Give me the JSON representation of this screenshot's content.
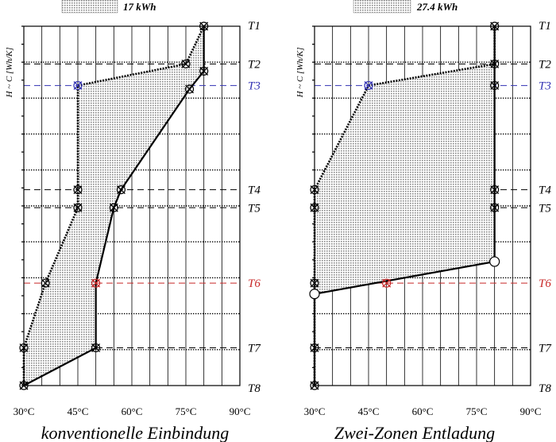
{
  "y_axis_label": "H ~ C [Wh/K]",
  "x_tick_labels": [
    "30°C",
    "45°C",
    "60°C",
    "75°C",
    "90°C"
  ],
  "level_labels": [
    "T1",
    "T2",
    "T3",
    "T4",
    "T5",
    "T6",
    "T7",
    "T8"
  ],
  "colors": {
    "hatch": "#8a8a8a",
    "t3": "#3232b4",
    "t6": "#c82828",
    "line": "#000000"
  },
  "panels": [
    {
      "caption": "konventionelle Einbindung",
      "energy_label": "17 kWh"
    },
    {
      "caption": "Zwei-Zonen Entladung",
      "energy_label": "27.4 kWh"
    }
  ],
  "chart_data": [
    {
      "type": "area",
      "title": "konventionelle Einbindung",
      "annotation": "17 kWh",
      "xlabel": "",
      "ylabel": "H ~ C [Wh/K]",
      "xlim": [
        30,
        90
      ],
      "x_ticks": [
        30,
        45,
        60,
        75,
        90
      ],
      "levels": [
        "T1",
        "T2",
        "T3",
        "T4",
        "T5",
        "T6",
        "T7",
        "T8"
      ],
      "level_positions": [
        1.0,
        0.895,
        0.835,
        0.545,
        0.495,
        0.285,
        0.105,
        0.0
      ],
      "series": [
        {
          "style": "solid",
          "points": [
            [
              80,
              1.0
            ],
            [
              80,
              0.875
            ],
            [
              76,
              0.825
            ],
            [
              57,
              0.545
            ],
            [
              55,
              0.495
            ],
            [
              50,
              0.285
            ],
            [
              50,
              0.105
            ],
            [
              30,
              0.0
            ]
          ]
        },
        {
          "style": "dashed",
          "points": [
            [
              80,
              1.0
            ],
            [
              75,
              0.895
            ],
            [
              45,
              0.835
            ],
            [
              45,
              0.545
            ],
            [
              45,
              0.495
            ],
            [
              36,
              0.285
            ],
            [
              30,
              0.105
            ],
            [
              30,
              0.0
            ]
          ]
        }
      ],
      "markers": [
        {
          "x": 80,
          "y": 1.0,
          "type": "cross"
        },
        {
          "x": 75,
          "y": 0.895,
          "type": "cross"
        },
        {
          "x": 80,
          "y": 0.875,
          "type": "cross"
        },
        {
          "x": 45,
          "y": 0.835,
          "type": "cross",
          "color": "t3"
        },
        {
          "x": 76,
          "y": 0.825,
          "type": "cross"
        },
        {
          "x": 45,
          "y": 0.545,
          "type": "cross"
        },
        {
          "x": 57,
          "y": 0.545,
          "type": "cross"
        },
        {
          "x": 45,
          "y": 0.495,
          "type": "cross"
        },
        {
          "x": 55,
          "y": 0.495,
          "type": "cross"
        },
        {
          "x": 36,
          "y": 0.285,
          "type": "cross"
        },
        {
          "x": 50,
          "y": 0.285,
          "type": "cross",
          "color": "t6"
        },
        {
          "x": 30,
          "y": 0.105,
          "type": "cross"
        },
        {
          "x": 50,
          "y": 0.105,
          "type": "cross"
        },
        {
          "x": 30,
          "y": 0.0,
          "type": "cross"
        }
      ]
    },
    {
      "type": "area",
      "title": "Zwei-Zonen Entladung",
      "annotation": "27.4 kWh",
      "xlabel": "",
      "ylabel": "H ~ C [Wh/K]",
      "xlim": [
        30,
        90
      ],
      "x_ticks": [
        30,
        45,
        60,
        75,
        90
      ],
      "levels": [
        "T1",
        "T2",
        "T3",
        "T4",
        "T5",
        "T6",
        "T7",
        "T8"
      ],
      "level_positions": [
        1.0,
        0.895,
        0.835,
        0.545,
        0.495,
        0.285,
        0.105,
        0.0
      ],
      "series": [
        {
          "style": "solid",
          "points": [
            [
              80,
              1.0
            ],
            [
              80,
              0.895
            ],
            [
              80,
              0.835
            ],
            [
              80,
              0.545
            ],
            [
              80,
              0.495
            ],
            [
              80,
              0.345
            ],
            [
              30,
              0.255
            ],
            [
              30,
              0.0
            ]
          ]
        },
        {
          "style": "dashed",
          "points": [
            [
              80,
              1.0
            ],
            [
              80,
              0.895
            ],
            [
              45,
              0.835
            ],
            [
              30,
              0.545
            ],
            [
              30,
              0.495
            ],
            [
              30,
              0.285
            ],
            [
              30,
              0.105
            ],
            [
              30,
              0.0
            ]
          ]
        }
      ],
      "markers": [
        {
          "x": 80,
          "y": 1.0,
          "type": "cross"
        },
        {
          "x": 80,
          "y": 0.895,
          "type": "cross"
        },
        {
          "x": 80,
          "y": 0.835,
          "type": "cross"
        },
        {
          "x": 45,
          "y": 0.835,
          "type": "cross",
          "color": "t3"
        },
        {
          "x": 30,
          "y": 0.545,
          "type": "cross"
        },
        {
          "x": 80,
          "y": 0.545,
          "type": "cross"
        },
        {
          "x": 30,
          "y": 0.495,
          "type": "cross"
        },
        {
          "x": 80,
          "y": 0.495,
          "type": "cross"
        },
        {
          "x": 80,
          "y": 0.345,
          "type": "circle"
        },
        {
          "x": 30,
          "y": 0.285,
          "type": "cross"
        },
        {
          "x": 50,
          "y": 0.285,
          "type": "cross",
          "color": "t6"
        },
        {
          "x": 30,
          "y": 0.255,
          "type": "circle"
        },
        {
          "x": 30,
          "y": 0.105,
          "type": "cross"
        },
        {
          "x": 30,
          "y": 0.0,
          "type": "cross"
        }
      ]
    }
  ]
}
